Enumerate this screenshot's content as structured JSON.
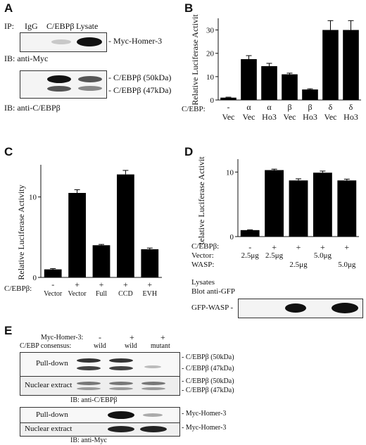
{
  "panelA": {
    "label": "A",
    "ip_prefix": "IP:",
    "lane_labels": [
      "IgG",
      "C/EBPβ",
      "Lysate"
    ],
    "blot1_label": "- Myc-Homer-3",
    "ib1": "IB: anti-Myc",
    "blot2_labels": [
      "- C/EBPβ (50kDa)",
      "- C/EBPβ (47kDa)"
    ],
    "ib2": "IB: anti-C/EBPβ"
  },
  "panelB": {
    "label": "B",
    "row_header": "C/EBP:",
    "chart_data": {
      "type": "bar",
      "ylabel": "Relative Luciferase Activity",
      "ylim": [
        0,
        35
      ],
      "yticks": [
        0,
        10,
        20,
        30
      ],
      "categories": [
        {
          "top": "-",
          "bottom": "Vec"
        },
        {
          "top": "α",
          "bottom": "Vec"
        },
        {
          "top": "α",
          "bottom": "Ho3"
        },
        {
          "top": "β",
          "bottom": "Vec"
        },
        {
          "top": "β",
          "bottom": "Ho3"
        },
        {
          "top": "δ",
          "bottom": "Vec"
        },
        {
          "top": "δ",
          "bottom": "Ho3"
        }
      ],
      "values": [
        1,
        17.5,
        14.5,
        11,
        4.5,
        30,
        30
      ],
      "errors": [
        0.2,
        1.5,
        1.2,
        0.5,
        0.3,
        4,
        4
      ]
    }
  },
  "panelC": {
    "label": "C",
    "row_header": "C/EBPβ:",
    "chart_data": {
      "type": "bar",
      "ylabel": "Relative Luciferase Activity",
      "ylim": [
        0,
        14
      ],
      "yticks": [
        0,
        10
      ],
      "categories": [
        {
          "top": "-",
          "bottom": "Vector"
        },
        {
          "top": "+",
          "bottom": "Vector"
        },
        {
          "top": "+",
          "bottom": "Full"
        },
        {
          "top": "+",
          "bottom": "CCD"
        },
        {
          "top": "+",
          "bottom": "EVH"
        }
      ],
      "values": [
        1,
        10.5,
        4,
        12.8,
        3.5
      ],
      "errors": [
        0.1,
        0.4,
        0.1,
        0.5,
        0.15
      ]
    }
  },
  "panelD": {
    "label": "D",
    "row_headers": [
      "C/EBPβ:",
      "Vector:",
      "WASP:"
    ],
    "chart_data": {
      "type": "bar",
      "ylabel": "Relative Luciferase Activity",
      "ylim": [
        0,
        12
      ],
      "yticks": [
        0,
        10
      ],
      "categories": [
        {
          "cebp": "-",
          "vector": "2.5μg",
          "wasp": ""
        },
        {
          "cebp": "+",
          "vector": "2.5μg",
          "wasp": ""
        },
        {
          "cebp": "+",
          "vector": "",
          "wasp": "2.5μg"
        },
        {
          "cebp": "+",
          "vector": "5.0μg",
          "wasp": ""
        },
        {
          "cebp": "+",
          "vector": "",
          "wasp": "5.0μg"
        }
      ],
      "values": [
        1,
        10.3,
        8.7,
        9.9,
        8.7
      ],
      "errors": [
        0.05,
        0.15,
        0.25,
        0.25,
        0.2
      ]
    },
    "lysates_label": "Lysates",
    "blot_label": "Blot anti-GFP",
    "gfp_label": "GFP-WASP -"
  },
  "panelE": {
    "label": "E",
    "header_labels": [
      "Myc-Homer-3:",
      "C/EBP consensus:"
    ],
    "lane_signs": [
      "-",
      "+",
      "+"
    ],
    "lane_types": [
      "wild",
      "wild",
      "mutant"
    ],
    "blot_rows": [
      "Pull-down",
      "Nuclear extract",
      "Pull-down",
      "Nuclear extract"
    ],
    "pulldown1_labels": [
      "- C/EBPβ (50kDa)",
      "- C/EBPβ (47kDa)"
    ],
    "nuclear1_labels": [
      "- C/EBPβ (50kDa)",
      "- C/EBPβ (47kDa)"
    ],
    "ib1": "IB: anti-C/EBPβ",
    "pulldown2_label": "- Myc-Homer-3",
    "nuclear2_label": "- Myc-Homer-3",
    "ib2": "IB: anti-Myc"
  }
}
